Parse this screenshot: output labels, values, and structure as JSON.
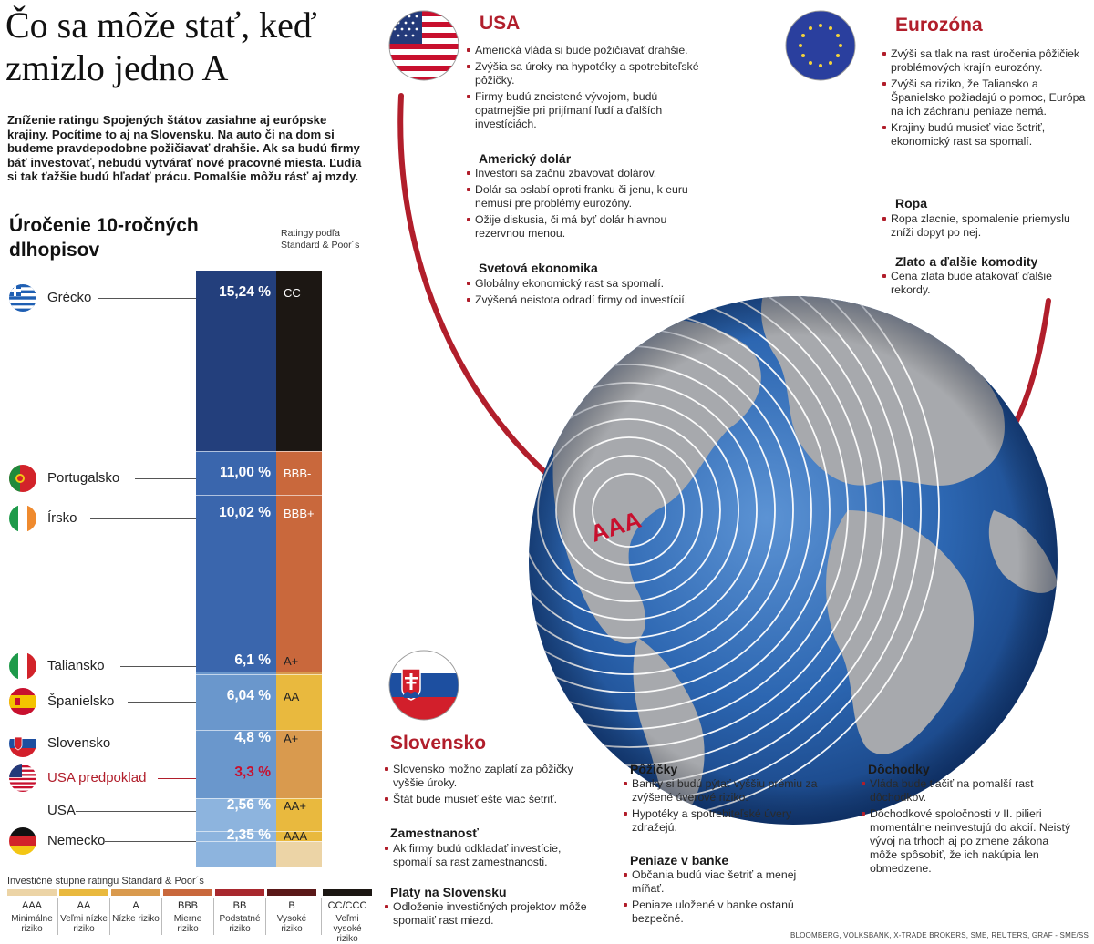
{
  "title": "Čo sa môže stať, keď zmizlo jedno A",
  "intro": "Zníženie ratingu Spojených štátov zasiahne aj európske krajiny. Pocítime to aj  na Slovensku. Na auto či na dom si budeme pravdepodobne požičiavať drahšie. Ak sa budú firmy báť investovať, nebudú vytvárať nové pracovné miesta. Ľudia si tak ťažšie budú hľadať prácu. Pomalšie môžu rásť aj mzdy.",
  "chart_data": {
    "type": "bar",
    "title": "Úročenie 10-ročných dlhopisov",
    "rating_header": "Ratingy podľa Standard & Poor´s",
    "categories": [
      "Grécko",
      "Portugalsko",
      "Írsko",
      "Taliansko",
      "Španielsko",
      "Slovensko",
      "USA predpoklad",
      "USA",
      "Nemecko"
    ],
    "values": [
      15.24,
      11.0,
      10.02,
      6.1,
      6.04,
      4.8,
      3.3,
      2.56,
      2.35
    ],
    "value_labels": [
      "15,24 %",
      "11,00 %",
      "10,02 %",
      "6,1 %",
      "6,04 %",
      "4,8 %",
      "3,3 %",
      "2,56 %",
      "2,35 %"
    ],
    "ratings": [
      "CC",
      "BBB-",
      "BBB+",
      "A+",
      "AA",
      "A+",
      "",
      "AA+",
      "AAA"
    ],
    "unit": "%",
    "colors": {
      "blue_dark": "#233f7c",
      "blue_mid": "#3a66ad",
      "blue_light": "#6a97cc",
      "blue_lightest": "#8db4de",
      "r_AAA": "#ecd4a6",
      "r_AA": "#e9b93e",
      "r_A": "#d99a4e",
      "r_BBB": "#c9683c",
      "r_BB": "#a8282e",
      "r_B": "#5a1818",
      "r_CC": "#1c1713",
      "accent": "#b11e2b"
    }
  },
  "legend": {
    "title": "Investičné stupne ratingu Standard & Poor´s",
    "items": [
      {
        "code": "AAA",
        "desc": "Minimálne riziko",
        "color": "#ecd4a6"
      },
      {
        "code": "AA",
        "desc": "Veľmi nízke riziko",
        "color": "#e9b93e"
      },
      {
        "code": "A",
        "desc": "Nízke riziko",
        "color": "#d99a4e"
      },
      {
        "code": "BBB",
        "desc": "Mierne riziko",
        "color": "#c9683c"
      },
      {
        "code": "BB",
        "desc": "Podstatné riziko",
        "color": "#a8282e"
      },
      {
        "code": "B",
        "desc": "Vysoké riziko",
        "color": "#5a1818"
      },
      {
        "code": "CC/CCC",
        "desc": "Veľmi vysoké riziko",
        "color": "#1c1713"
      }
    ]
  },
  "globe_label": "AAA",
  "usa": {
    "title": "USA",
    "bullets": [
      "Americká vláda si bude požičiavať drahšie.",
      "Zvýšia sa úroky na hypotéky a spotrebiteľské pôžičky.",
      "Firmy budú zneistené vývojom, budú opatrnejšie pri prijímaní ľudí a ďalších investíciách."
    ],
    "dollar_title": "Americký dolár",
    "dollar_bullets": [
      "Investori sa začnú zbavovať dolárov.",
      "Dolár sa oslabí oproti franku či jenu, k euru nemusí pre problémy eurozóny.",
      "Ožije diskusia, či má byť dolár hlavnou rezervnou menou."
    ],
    "world_title": "Svetová ekonomika",
    "world_bullets": [
      "Globálny ekonomický rast sa spomalí.",
      "Zvýšená neistota odradí firmy od investícií."
    ]
  },
  "euro": {
    "title": "Eurozóna",
    "bullets": [
      "Zvýši sa tlak na rast úročenia pôžičiek problémových krajín eurozóny.",
      "Zvýši sa riziko, že Taliansko a Španielsko požiadajú o pomoc, Európa na ich záchranu peniaze nemá.",
      "Krajiny budú musieť viac šetriť, ekonomický rast sa spomalí."
    ],
    "oil_title": "Ropa",
    "oil_bullets": [
      "Ropa zlacnie, spomalenie priemyslu zníži dopyt po nej."
    ],
    "gold_title": "Zlato a ďalšie komodity",
    "gold_text": "Cena zlata bude atakovať ďalšie rekordy."
  },
  "sk": {
    "title": "Slovensko",
    "bullets": [
      "Slovensko možno zaplatí za pôžičky vyššie úroky.",
      "Štát bude musieť ešte viac šetriť."
    ],
    "emp_title": "Zamestnanosť",
    "emp_bullets": [
      "Ak firmy budú odkladať investície, spomalí sa rast zamestnanosti."
    ],
    "wage_title": "Platy na Slovensku",
    "wage_text": "Odloženie investičných projektov môže spomaliť rast miezd.",
    "loan_title": "Pôžičky",
    "loan_bullets": [
      "Banky si budú pýtať vyššiu prémiu za zvýšené úverové riziko.",
      "Hypotéky a spotrebiteľské úvery zdražejú."
    ],
    "bank_title": "Peniaze v banke",
    "bank_bullets": [
      "Občania budú viac šetriť a menej míňať.",
      "Peniaze uložené v banke ostanú bezpečné."
    ],
    "pension_title": "Dôchodky",
    "pension_bullets": [
      "Vláda bude tlačiť na pomalší rast dôchodkov.",
      "Dôchodkové spoločnosti v II. pilieri momentálne neinvestujú do akcií. Neistý vývoj na trhoch aj po zmene zákona môže spôsobiť, že ich nakúpia len obmedzene."
    ]
  },
  "source": "BLOOMBERG, VOLKSBANK, X-TRADE BROKERS, SME, REUTERS, GRAF - SME/SS"
}
